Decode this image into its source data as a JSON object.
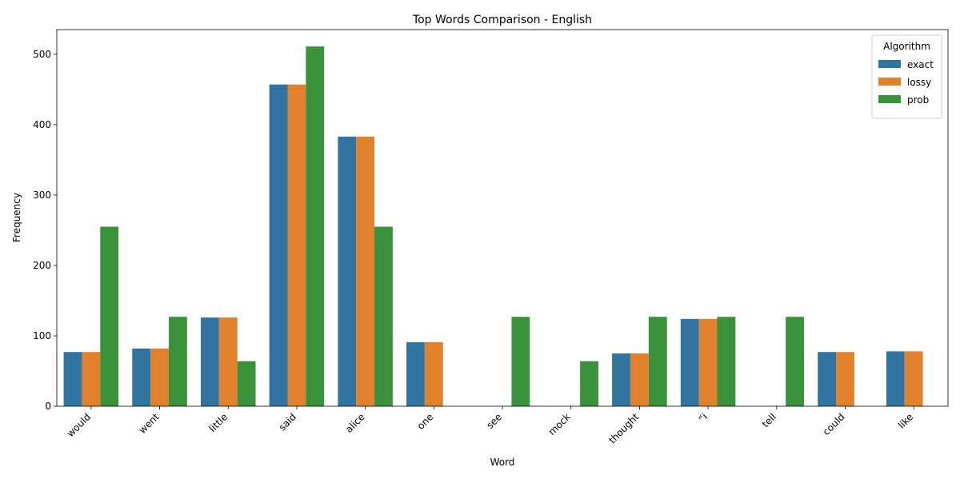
{
  "chart_data": {
    "type": "bar",
    "title": "Top Words Comparison - English",
    "xlabel": "Word",
    "ylabel": "Frequency",
    "ylim": [
      0,
      535
    ],
    "yticks": [
      0,
      100,
      200,
      300,
      400,
      500
    ],
    "categories": [
      "would",
      "went",
      "little",
      "said",
      "alice",
      "one",
      "see",
      "mock",
      "thought",
      "“i",
      "tell",
      "could",
      "like"
    ],
    "series": [
      {
        "name": "exact",
        "color": "#3274a1",
        "values": [
          77,
          82,
          126,
          457,
          383,
          91,
          0,
          0,
          75,
          124,
          0,
          77,
          78
        ]
      },
      {
        "name": "lossy",
        "color": "#e1812c",
        "values": [
          77,
          82,
          126,
          457,
          383,
          91,
          0,
          0,
          75,
          124,
          0,
          77,
          78
        ]
      },
      {
        "name": "prob",
        "color": "#3a923a",
        "values": [
          255,
          127,
          64,
          511,
          255,
          0,
          127,
          64,
          127,
          127,
          127,
          0,
          0
        ]
      }
    ],
    "legend": {
      "title": "Algorithm",
      "position": "top-right"
    },
    "grid": false
  }
}
